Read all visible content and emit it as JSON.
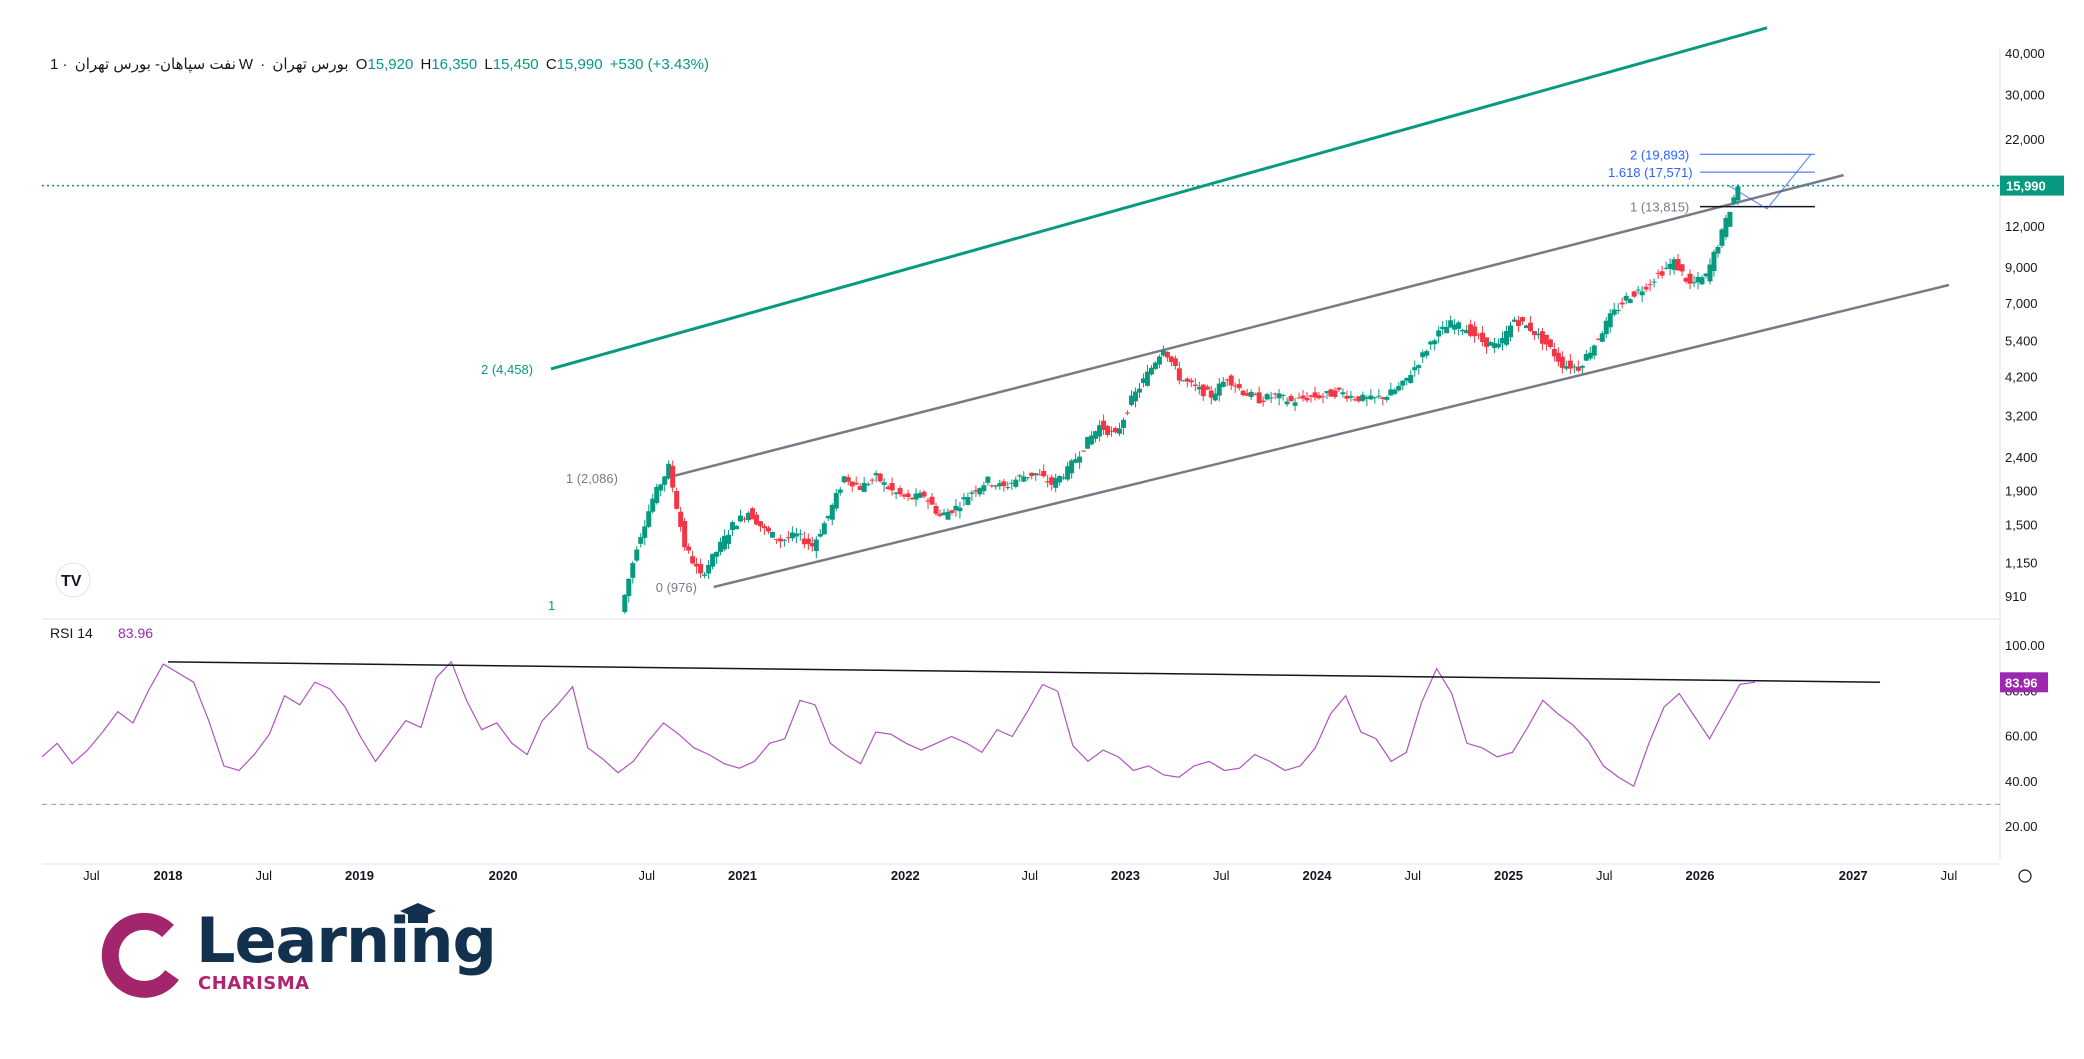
{
  "header": {
    "symbol": "نفت سپاهان- بورس تهران",
    "interval": "1W",
    "exchange": "بورس تهران",
    "open_label": "O",
    "open": "15,920",
    "high_label": "H",
    "high": "16,350",
    "low_label": "L",
    "low": "15,450",
    "close_label": "C",
    "close": "15,990",
    "change": "+530 (+3.43%)"
  },
  "logo": {
    "name": "Learning",
    "sub": "CHARISMA"
  },
  "chart_data": {
    "type": "candlestick",
    "scale": "log",
    "price_axis_ticks": [
      "40,000",
      "30,000",
      "22,000",
      "15,990",
      "12,000",
      "9,000",
      "7,000",
      "5,400",
      "4,200",
      "3,200",
      "2,400",
      "1,900",
      "1,500",
      "1,150",
      "910"
    ],
    "price_tick_values": [
      40000,
      30000,
      22000,
      15990,
      12000,
      9000,
      7000,
      5400,
      4200,
      3200,
      2400,
      1900,
      1500,
      1150,
      910
    ],
    "time_axis_labels": [
      "Jul",
      "2018",
      "Jul",
      "2019",
      "2020",
      "Jul",
      "2021",
      "2022",
      "Jul",
      "2023",
      "Jul",
      "2024",
      "Jul",
      "2025",
      "Jul",
      "2026",
      "2027",
      "Jul"
    ],
    "last_price": {
      "value": 15990,
      "label": "15,990"
    },
    "price_path": [
      {
        "date": "2020-05",
        "value": 820
      },
      {
        "date": "2020-06",
        "value": 1300
      },
      {
        "date": "2020-07",
        "value": 1800
      },
      {
        "date": "2020-08",
        "value": 2250
      },
      {
        "date": "2020-09",
        "value": 1300
      },
      {
        "date": "2020-10",
        "value": 1050
      },
      {
        "date": "2020-11",
        "value": 1250
      },
      {
        "date": "2020-12",
        "value": 1500
      },
      {
        "date": "2021-01",
        "value": 1650
      },
      {
        "date": "2021-02",
        "value": 1450
      },
      {
        "date": "2021-03",
        "value": 1350
      },
      {
        "date": "2021-04",
        "value": 1400
      },
      {
        "date": "2021-05",
        "value": 1300
      },
      {
        "date": "2021-06",
        "value": 1600
      },
      {
        "date": "2021-07",
        "value": 2100
      },
      {
        "date": "2021-08",
        "value": 1950
      },
      {
        "date": "2021-09",
        "value": 2100
      },
      {
        "date": "2021-10",
        "value": 1900
      },
      {
        "date": "2021-11",
        "value": 1800
      },
      {
        "date": "2021-12",
        "value": 1850
      },
      {
        "date": "2022-01",
        "value": 1600
      },
      {
        "date": "2022-02",
        "value": 1700
      },
      {
        "date": "2022-03",
        "value": 1900
      },
      {
        "date": "2022-04",
        "value": 2050
      },
      {
        "date": "2022-05",
        "value": 1950
      },
      {
        "date": "2022-06",
        "value": 2100
      },
      {
        "date": "2022-07",
        "value": 2150
      },
      {
        "date": "2022-08",
        "value": 2000
      },
      {
        "date": "2022-09",
        "value": 2200
      },
      {
        "date": "2022-10",
        "value": 2600
      },
      {
        "date": "2022-11",
        "value": 3000
      },
      {
        "date": "2022-12",
        "value": 2800
      },
      {
        "date": "2023-01",
        "value": 3600
      },
      {
        "date": "2023-02",
        "value": 4300
      },
      {
        "date": "2023-03",
        "value": 5200
      },
      {
        "date": "2023-04",
        "value": 4200
      },
      {
        "date": "2023-05",
        "value": 3900
      },
      {
        "date": "2023-06",
        "value": 3700
      },
      {
        "date": "2023-07",
        "value": 4200
      },
      {
        "date": "2023-08",
        "value": 3800
      },
      {
        "date": "2023-09",
        "value": 3600
      },
      {
        "date": "2023-10",
        "value": 3700
      },
      {
        "date": "2023-11",
        "value": 3550
      },
      {
        "date": "2023-12",
        "value": 3650
      },
      {
        "date": "2024-01",
        "value": 3700
      },
      {
        "date": "2024-02",
        "value": 3800
      },
      {
        "date": "2024-03",
        "value": 3650
      },
      {
        "date": "2024-04",
        "value": 3600
      },
      {
        "date": "2024-05",
        "value": 3700
      },
      {
        "date": "2024-06",
        "value": 4000
      },
      {
        "date": "2024-07",
        "value": 4700
      },
      {
        "date": "2024-08",
        "value": 5600
      },
      {
        "date": "2024-09",
        "value": 6100
      },
      {
        "date": "2024-10",
        "value": 5900
      },
      {
        "date": "2024-11",
        "value": 5400
      },
      {
        "date": "2024-12",
        "value": 5200
      },
      {
        "date": "2025-01",
        "value": 6300
      },
      {
        "date": "2025-02",
        "value": 5900
      },
      {
        "date": "2025-03",
        "value": 5300
      },
      {
        "date": "2025-04",
        "value": 4600
      },
      {
        "date": "2025-05",
        "value": 4500
      },
      {
        "date": "2025-06",
        "value": 5300
      },
      {
        "date": "2025-07",
        "value": 6400
      },
      {
        "date": "2025-08",
        "value": 7300
      },
      {
        "date": "2025-09",
        "value": 7800
      },
      {
        "date": "2025-10",
        "value": 8600
      },
      {
        "date": "2025-11",
        "value": 9400
      },
      {
        "date": "2025-12",
        "value": 8000
      },
      {
        "date": "2026-01",
        "value": 8500
      },
      {
        "date": "2026-02",
        "value": 11500
      },
      {
        "date": "2026-03",
        "value": 15990
      }
    ],
    "annotations": [
      {
        "label": "2 (4,458)",
        "color": "#089981"
      },
      {
        "label": "1 (2,086)",
        "color": "#787b86"
      },
      {
        "label": "0 (976)",
        "color": "#787b86"
      },
      {
        "label": "1",
        "color": "#089981"
      },
      {
        "label": "2 (19,893)",
        "color": "#2962ff"
      },
      {
        "label": "1.618 (17,571)",
        "color": "#2962ff"
      },
      {
        "label": "1 (13,815)",
        "color": "#787b86"
      }
    ],
    "channels": [
      {
        "name": "upper-channel-line",
        "color": "#089981"
      },
      {
        "name": "middle-channel-line",
        "color": "#787b86"
      },
      {
        "name": "lower-channel-line",
        "color": "#787b86"
      }
    ],
    "rsi": {
      "label": "RSI",
      "period": "14",
      "value": "83.96",
      "axis_ticks": [
        "100.00",
        "80.00",
        "60.00",
        "40.00",
        "20.00"
      ],
      "tick_values": [
        100,
        80,
        60,
        40,
        20
      ],
      "dashed_level": 30,
      "line_color": "#9c27b0",
      "series": [
        51,
        57,
        48,
        54,
        62,
        71,
        66,
        80,
        92,
        88,
        84,
        67,
        47,
        45,
        52,
        61,
        78,
        74,
        84,
        81,
        73,
        60,
        49,
        58,
        67,
        64,
        86,
        93,
        76,
        63,
        66,
        57,
        52,
        67,
        74,
        82,
        55,
        50,
        44,
        49,
        58,
        66,
        61,
        55,
        52,
        48,
        46,
        49,
        57,
        59,
        76,
        74,
        57,
        52,
        48,
        62,
        61,
        57,
        54,
        57,
        60,
        57,
        53,
        63,
        60,
        71,
        83,
        80,
        56,
        49,
        54,
        51,
        45,
        47,
        43,
        42,
        47,
        49,
        45,
        46,
        52,
        49,
        45,
        47,
        55,
        70,
        78,
        62,
        59,
        49,
        53,
        75,
        90,
        79,
        57,
        55,
        51,
        53,
        64,
        76,
        70,
        65,
        58,
        47,
        42,
        38,
        57,
        73,
        79,
        69,
        59,
        71,
        83,
        84
      ]
    }
  }
}
